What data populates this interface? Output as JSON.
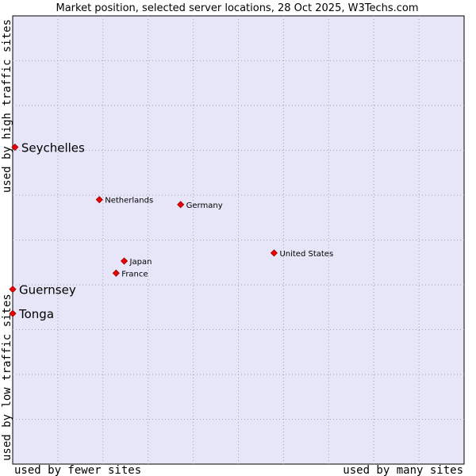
{
  "chart_data": {
    "type": "scatter",
    "title": "Market position, selected server locations, 28 Oct 2025, W3Techs.com",
    "xlabel_left": "used by fewer sites",
    "xlabel_right": "used by many sites",
    "ylabel_bottom": "used by low traffic sites",
    "ylabel_top": "used by high traffic sites",
    "xlim": [
      0,
      100
    ],
    "ylim": [
      0,
      100
    ],
    "grid": true,
    "colors": {
      "plot_background": "#e6e6f8",
      "grid": "#a0a0b8",
      "point_fill": "#ee0000",
      "point_stroke": "#990000"
    },
    "points": [
      {
        "label": "Seychelles",
        "x": 0.5,
        "y": 70.7,
        "highlight": true
      },
      {
        "label": "Netherlands",
        "x": 19.2,
        "y": 59.0,
        "highlight": false
      },
      {
        "label": "Germany",
        "x": 37.2,
        "y": 57.9,
        "highlight": false
      },
      {
        "label": "United States",
        "x": 57.9,
        "y": 47.1,
        "highlight": false
      },
      {
        "label": "Japan",
        "x": 24.7,
        "y": 45.3,
        "highlight": false
      },
      {
        "label": "France",
        "x": 22.9,
        "y": 42.6,
        "highlight": false
      },
      {
        "label": "Guernsey",
        "x": 0.0,
        "y": 39.0,
        "highlight": true
      },
      {
        "label": "Tonga",
        "x": 0.0,
        "y": 33.6,
        "highlight": true
      }
    ]
  }
}
